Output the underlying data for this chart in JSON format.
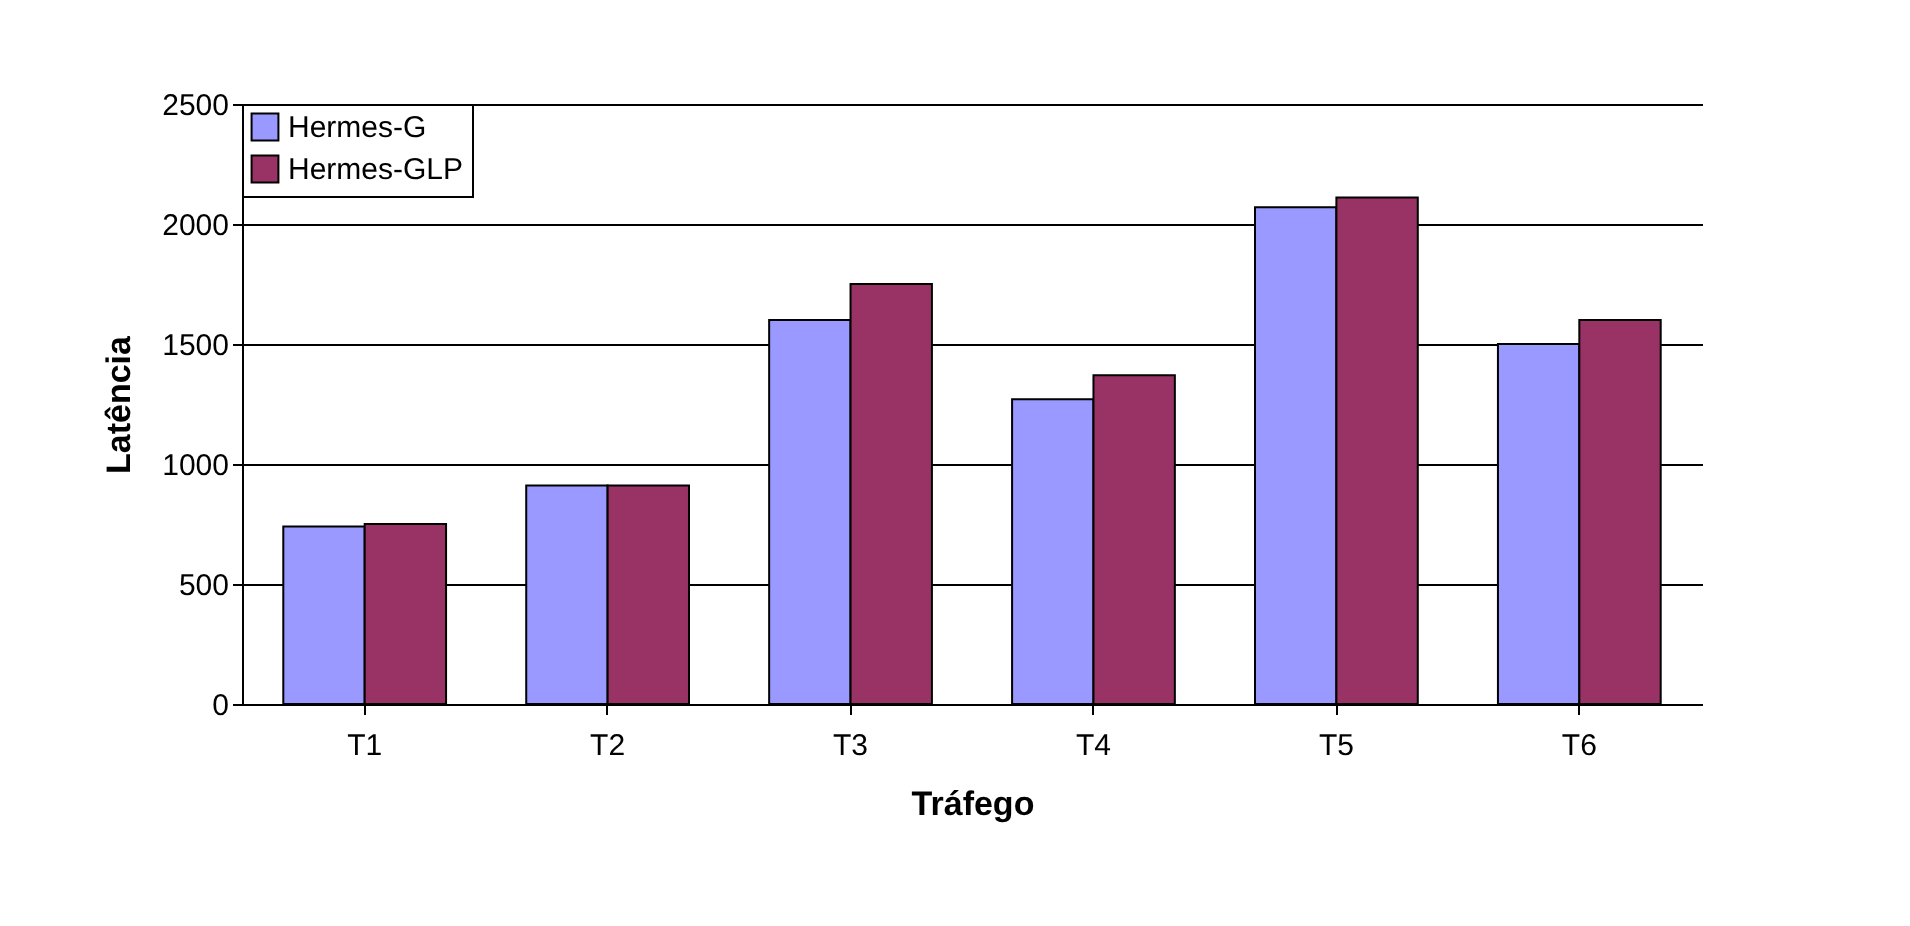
{
  "chart_data": {
    "type": "bar",
    "xlabel": "Tráfego",
    "ylabel": "Latência",
    "categories": [
      "T1",
      "T2",
      "T3",
      "T4",
      "T5",
      "T6"
    ],
    "series": [
      {
        "name": "Hermes-G",
        "color": "#9999ff",
        "values": [
          740,
          910,
          1600,
          1270,
          2070,
          1500
        ]
      },
      {
        "name": "Hermes-GLP",
        "color": "#993366",
        "values": [
          750,
          910,
          1750,
          1370,
          2110,
          1600
        ]
      }
    ],
    "ylim": [
      0,
      2500
    ],
    "yticks": [
      0,
      500,
      1000,
      1500,
      2000,
      2500
    ],
    "grid": "y",
    "legend": "top left"
  }
}
